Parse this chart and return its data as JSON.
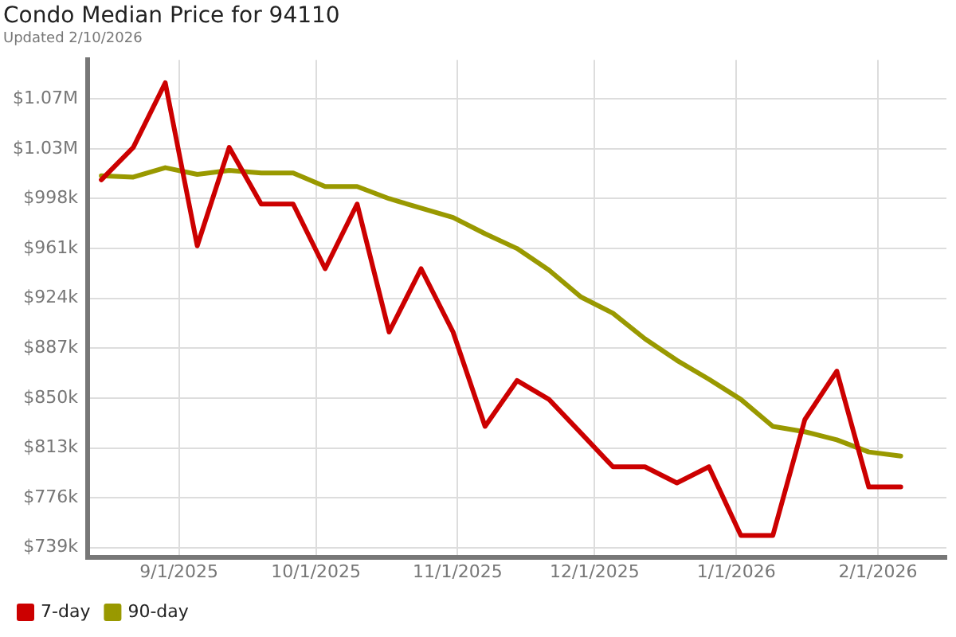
{
  "chart_data": {
    "type": "line",
    "title": "Condo Median Price for 94110",
    "subtitle": "Updated 2/10/2026",
    "x": [
      "2025-08-15",
      "2025-08-22",
      "2025-08-29",
      "2025-09-05",
      "2025-09-12",
      "2025-09-19",
      "2025-09-26",
      "2025-10-03",
      "2025-10-10",
      "2025-10-17",
      "2025-10-24",
      "2025-10-31",
      "2025-11-07",
      "2025-11-14",
      "2025-11-21",
      "2025-11-28",
      "2025-12-05",
      "2025-12-12",
      "2025-12-19",
      "2025-12-26",
      "2026-01-02",
      "2026-01-09",
      "2026-01-16",
      "2026-01-23",
      "2026-01-30",
      "2026-02-06"
    ],
    "series": [
      {
        "name": "7-day",
        "color": "#cc0000",
        "values": [
          1012000,
          1036000,
          1084000,
          963000,
          1036000,
          994000,
          994000,
          946000,
          994000,
          899000,
          946000,
          899000,
          829000,
          863000,
          849000,
          824000,
          799000,
          799000,
          787000,
          799000,
          748000,
          748000,
          834000,
          870000,
          784000,
          784000
        ]
      },
      {
        "name": "90-day",
        "color": "#999900",
        "values": [
          1015000,
          1014000,
          1021000,
          1016000,
          1019000,
          1017000,
          1017000,
          1007000,
          1007000,
          998000,
          991000,
          984000,
          972000,
          961000,
          945000,
          925000,
          913000,
          894000,
          878000,
          864000,
          849000,
          829000,
          825000,
          819000,
          810000,
          807000
        ]
      }
    ],
    "xlim": [
      "2025-08-12",
      "2026-02-16"
    ],
    "xticks": [
      {
        "value": "2025-09-01",
        "label": "9/1/2025"
      },
      {
        "value": "2025-10-01",
        "label": "10/1/2025"
      },
      {
        "value": "2025-11-01",
        "label": "11/1/2025"
      },
      {
        "value": "2025-12-01",
        "label": "12/1/2025"
      },
      {
        "value": "2026-01-01",
        "label": "1/1/2026"
      },
      {
        "value": "2026-02-01",
        "label": "2/1/2026"
      }
    ],
    "ylim": [
      732000,
      1101000
    ],
    "yticks": [
      {
        "value": 739000,
        "label": "$739k"
      },
      {
        "value": 776000,
        "label": "$776k"
      },
      {
        "value": 813000,
        "label": "$813k"
      },
      {
        "value": 850000,
        "label": "$850k"
      },
      {
        "value": 887000,
        "label": "$887k"
      },
      {
        "value": 924000,
        "label": "$924k"
      },
      {
        "value": 961000,
        "label": "$961k"
      },
      {
        "value": 998000,
        "label": "$998k"
      },
      {
        "value": 1035000,
        "label": "$1.03M"
      },
      {
        "value": 1072000,
        "label": "$1.07M"
      }
    ],
    "grid": true,
    "legend": "bottom left",
    "marker": "none",
    "line_style": "solid"
  }
}
